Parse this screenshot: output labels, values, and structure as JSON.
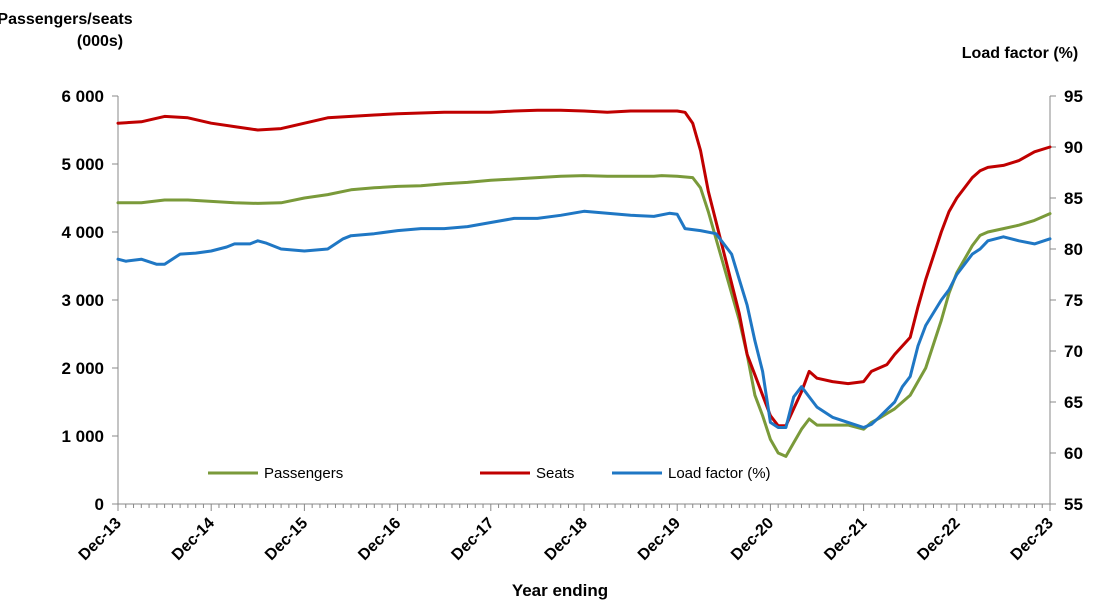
{
  "chart_data": {
    "type": "line",
    "title": "",
    "ylabel_left": [
      "Passengers/seats",
      "(000s)"
    ],
    "ylabel_right": "Load factor  (%)",
    "xlabel": "Year ending",
    "ylim_left": [
      0,
      6000
    ],
    "ylim_right": [
      55,
      95
    ],
    "yticks_left": [
      0,
      1000,
      2000,
      3000,
      4000,
      5000,
      6000
    ],
    "yticks_left_labels": [
      "0",
      "1 000",
      "2 000",
      "3 000",
      "4 000",
      "5 000",
      "6 000"
    ],
    "yticks_right": [
      55,
      60,
      65,
      70,
      75,
      80,
      85,
      90,
      95
    ],
    "yticks_right_labels": [
      "55",
      "60",
      "65",
      "70",
      "75",
      "80",
      "85",
      "90",
      "95"
    ],
    "xlim": [
      0,
      120
    ],
    "xticks": [
      0,
      12,
      24,
      36,
      48,
      60,
      72,
      84,
      96,
      108,
      120
    ],
    "xtick_labels": [
      "Dec-13",
      "Dec-14",
      "Dec-15",
      "Dec-16",
      "Dec-17",
      "Dec-18",
      "Dec-19",
      "Dec-20",
      "Dec-21",
      "Dec-22",
      "Dec-23"
    ],
    "grid": false,
    "legend_position": "bottom-center",
    "series": [
      {
        "name": "Passengers",
        "axis": "left",
        "color": "#7a9a3a",
        "points": [
          [
            0,
            4430
          ],
          [
            3,
            4430
          ],
          [
            6,
            4470
          ],
          [
            9,
            4470
          ],
          [
            12,
            4450
          ],
          [
            15,
            4430
          ],
          [
            18,
            4420
          ],
          [
            21,
            4430
          ],
          [
            24,
            4500
          ],
          [
            27,
            4550
          ],
          [
            30,
            4620
          ],
          [
            33,
            4650
          ],
          [
            36,
            4670
          ],
          [
            39,
            4680
          ],
          [
            42,
            4710
          ],
          [
            45,
            4730
          ],
          [
            48,
            4760
          ],
          [
            51,
            4780
          ],
          [
            54,
            4800
          ],
          [
            57,
            4820
          ],
          [
            60,
            4830
          ],
          [
            63,
            4820
          ],
          [
            66,
            4820
          ],
          [
            69,
            4820
          ],
          [
            70,
            4830
          ],
          [
            72,
            4820
          ],
          [
            74,
            4800
          ],
          [
            75,
            4650
          ],
          [
            76,
            4300
          ],
          [
            78,
            3500
          ],
          [
            80,
            2700
          ],
          [
            81,
            2200
          ],
          [
            82,
            1600
          ],
          [
            83,
            1300
          ],
          [
            84,
            950
          ],
          [
            85,
            750
          ],
          [
            86,
            700
          ],
          [
            87,
            900
          ],
          [
            88,
            1100
          ],
          [
            89,
            1250
          ],
          [
            90,
            1160
          ],
          [
            92,
            1160
          ],
          [
            94,
            1160
          ],
          [
            96,
            1100
          ],
          [
            97,
            1200
          ],
          [
            98,
            1260
          ],
          [
            100,
            1400
          ],
          [
            102,
            1600
          ],
          [
            104,
            2000
          ],
          [
            106,
            2700
          ],
          [
            107,
            3100
          ],
          [
            108,
            3400
          ],
          [
            110,
            3800
          ],
          [
            111,
            3950
          ],
          [
            112,
            4000
          ],
          [
            114,
            4050
          ],
          [
            116,
            4100
          ],
          [
            118,
            4170
          ],
          [
            120,
            4270
          ]
        ]
      },
      {
        "name": "Seats",
        "axis": "left",
        "color": "#c00000",
        "points": [
          [
            0,
            5600
          ],
          [
            3,
            5620
          ],
          [
            6,
            5700
          ],
          [
            9,
            5680
          ],
          [
            12,
            5600
          ],
          [
            15,
            5550
          ],
          [
            18,
            5500
          ],
          [
            21,
            5520
          ],
          [
            24,
            5600
          ],
          [
            27,
            5680
          ],
          [
            30,
            5700
          ],
          [
            33,
            5720
          ],
          [
            36,
            5740
          ],
          [
            39,
            5750
          ],
          [
            42,
            5760
          ],
          [
            45,
            5760
          ],
          [
            48,
            5760
          ],
          [
            51,
            5780
          ],
          [
            54,
            5790
          ],
          [
            57,
            5790
          ],
          [
            60,
            5780
          ],
          [
            63,
            5760
          ],
          [
            66,
            5780
          ],
          [
            69,
            5780
          ],
          [
            72,
            5780
          ],
          [
            73,
            5760
          ],
          [
            74,
            5600
          ],
          [
            75,
            5200
          ],
          [
            76,
            4600
          ],
          [
            78,
            3700
          ],
          [
            80,
            2800
          ],
          [
            81,
            2200
          ],
          [
            82,
            1900
          ],
          [
            83,
            1600
          ],
          [
            84,
            1300
          ],
          [
            85,
            1150
          ],
          [
            86,
            1150
          ],
          [
            87,
            1400
          ],
          [
            88,
            1650
          ],
          [
            89,
            1950
          ],
          [
            90,
            1850
          ],
          [
            92,
            1800
          ],
          [
            94,
            1770
          ],
          [
            96,
            1800
          ],
          [
            97,
            1950
          ],
          [
            98,
            2000
          ],
          [
            99,
            2050
          ],
          [
            100,
            2200
          ],
          [
            102,
            2450
          ],
          [
            103,
            2900
          ],
          [
            104,
            3300
          ],
          [
            106,
            4000
          ],
          [
            107,
            4300
          ],
          [
            108,
            4500
          ],
          [
            110,
            4800
          ],
          [
            111,
            4900
          ],
          [
            112,
            4950
          ],
          [
            114,
            4980
          ],
          [
            116,
            5050
          ],
          [
            118,
            5180
          ],
          [
            120,
            5250
          ]
        ]
      },
      {
        "name": "Load factor (%)",
        "axis": "right",
        "color": "#1f77c4",
        "points": [
          [
            0,
            79.0
          ],
          [
            1,
            78.8
          ],
          [
            3,
            79.0
          ],
          [
            5,
            78.5
          ],
          [
            6,
            78.5
          ],
          [
            8,
            79.5
          ],
          [
            10,
            79.6
          ],
          [
            12,
            79.8
          ],
          [
            14,
            80.2
          ],
          [
            15,
            80.5
          ],
          [
            17,
            80.5
          ],
          [
            18,
            80.8
          ],
          [
            19,
            80.6
          ],
          [
            21,
            80.0
          ],
          [
            24,
            79.8
          ],
          [
            27,
            80.0
          ],
          [
            29,
            81.0
          ],
          [
            30,
            81.3
          ],
          [
            33,
            81.5
          ],
          [
            36,
            81.8
          ],
          [
            39,
            82.0
          ],
          [
            42,
            82.0
          ],
          [
            45,
            82.2
          ],
          [
            48,
            82.6
          ],
          [
            51,
            83.0
          ],
          [
            54,
            83.0
          ],
          [
            57,
            83.3
          ],
          [
            60,
            83.7
          ],
          [
            63,
            83.5
          ],
          [
            66,
            83.3
          ],
          [
            69,
            83.2
          ],
          [
            71,
            83.5
          ],
          [
            72,
            83.4
          ],
          [
            73,
            82.0
          ],
          [
            75,
            81.8
          ],
          [
            77,
            81.5
          ],
          [
            78,
            80.5
          ],
          [
            79,
            79.5
          ],
          [
            80,
            77.0
          ],
          [
            81,
            74.5
          ],
          [
            82,
            71.0
          ],
          [
            83,
            68.0
          ],
          [
            84,
            63.0
          ],
          [
            85,
            62.5
          ],
          [
            86,
            62.5
          ],
          [
            87,
            65.5
          ],
          [
            88,
            66.5
          ],
          [
            89,
            65.5
          ],
          [
            90,
            64.5
          ],
          [
            92,
            63.5
          ],
          [
            94,
            63.0
          ],
          [
            96,
            62.5
          ],
          [
            97,
            62.8
          ],
          [
            98,
            63.5
          ],
          [
            100,
            65.0
          ],
          [
            101,
            66.5
          ],
          [
            102,
            67.5
          ],
          [
            103,
            70.5
          ],
          [
            104,
            72.5
          ],
          [
            106,
            75.0
          ],
          [
            107,
            76.0
          ],
          [
            108,
            77.5
          ],
          [
            110,
            79.5
          ],
          [
            111,
            80.0
          ],
          [
            112,
            80.8
          ],
          [
            114,
            81.2
          ],
          [
            116,
            80.8
          ],
          [
            118,
            80.5
          ],
          [
            120,
            81.0
          ]
        ]
      }
    ]
  }
}
